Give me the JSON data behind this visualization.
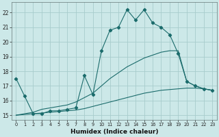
{
  "xlabel": "Humidex (Indice chaleur)",
  "background_color": "#cce8e8",
  "grid_color": "#a8cccc",
  "line_color": "#1a6b6b",
  "xlim": [
    -0.5,
    23.5
  ],
  "ylim": [
    14.7,
    22.7
  ],
  "yticks": [
    15,
    16,
    17,
    18,
    19,
    20,
    21,
    22
  ],
  "xticks": [
    0,
    1,
    2,
    3,
    4,
    5,
    6,
    7,
    8,
    9,
    10,
    11,
    12,
    13,
    14,
    15,
    16,
    17,
    18,
    19,
    20,
    21,
    22,
    23
  ],
  "series": [
    {
      "x": [
        0,
        1,
        2,
        3,
        4,
        5,
        6,
        7,
        8,
        9,
        10,
        11,
        12,
        13,
        14,
        15,
        16,
        17,
        18,
        19,
        20,
        21,
        22,
        23
      ],
      "y": [
        17.5,
        16.3,
        15.1,
        15.1,
        15.3,
        15.3,
        15.4,
        15.5,
        17.7,
        16.4,
        19.4,
        20.8,
        21.0,
        22.2,
        21.5,
        22.2,
        21.3,
        21.0,
        20.5,
        19.2,
        17.3,
        17.0,
        16.8,
        16.7
      ],
      "marker": "D",
      "markersize": 2.2
    },
    {
      "x": [
        0,
        1,
        2,
        3,
        4,
        5,
        6,
        7,
        8,
        9,
        10,
        11,
        12,
        13,
        14,
        15,
        16,
        17,
        18,
        19,
        20,
        21,
        22,
        23
      ],
      "y": [
        15.0,
        15.05,
        15.1,
        15.15,
        15.2,
        15.25,
        15.3,
        15.35,
        15.45,
        15.6,
        15.75,
        15.9,
        16.05,
        16.2,
        16.35,
        16.5,
        16.6,
        16.7,
        16.75,
        16.8,
        16.85,
        16.85,
        16.8,
        16.7
      ],
      "marker": null,
      "markersize": 0
    },
    {
      "x": [
        0,
        1,
        2,
        3,
        4,
        5,
        6,
        7,
        8,
        9,
        10,
        11,
        12,
        13,
        14,
        15,
        16,
        17,
        18,
        19,
        20,
        21,
        22,
        23
      ],
      "y": [
        15.0,
        15.1,
        15.2,
        15.4,
        15.5,
        15.6,
        15.7,
        15.9,
        16.2,
        16.5,
        17.0,
        17.5,
        17.9,
        18.3,
        18.6,
        18.9,
        19.1,
        19.3,
        19.4,
        19.4,
        17.3,
        17.0,
        16.8,
        16.7
      ],
      "marker": null,
      "markersize": 0
    }
  ]
}
